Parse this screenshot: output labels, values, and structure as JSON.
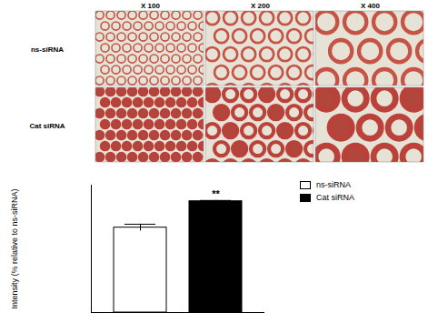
{
  "figure": {
    "columns": [
      "X 100",
      "X 200",
      "X 400"
    ],
    "rows": [
      "ns-siRNA",
      "Cat siRNA"
    ]
  },
  "chart_data": {
    "type": "bar",
    "categories": [
      "ns-siRNA",
      "Cat siRNA"
    ],
    "values": [
      100,
      131
    ],
    "errors": [
      4,
      1
    ],
    "colors": [
      "#ffffff",
      "#000000"
    ],
    "ylabel": "Intensity (% relative to ns-siRNA)",
    "ylim": [
      0,
      150
    ],
    "yticks": [],
    "tick_labels": false,
    "legend": "top-right",
    "annotations": [
      {
        "category": "Cat siRNA",
        "text": "**"
      }
    ]
  }
}
